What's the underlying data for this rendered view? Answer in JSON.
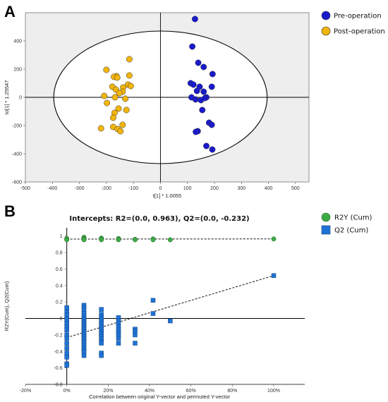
{
  "panels": {
    "a_letter": "A",
    "b_letter": "B"
  },
  "chart_data": [
    {
      "type": "scatter",
      "xlabel": "t[1] * 1.0055",
      "ylabel": "to[1] * 1.25547",
      "xlim": [
        -500,
        550
      ],
      "ylim": [
        -600,
        600
      ],
      "xticks": [
        -500,
        -400,
        -300,
        -200,
        -100,
        0,
        100,
        200,
        300,
        400,
        500
      ],
      "yticks": [
        -600,
        -400,
        -200,
        0,
        200,
        400
      ],
      "ellipse": {
        "center": [
          0,
          0
        ],
        "rx": 395,
        "ry": 470
      },
      "grid": false,
      "legend_position": "top-right",
      "series": [
        {
          "name": "Pre-operation",
          "color": "#1a1acc",
          "points": [
            [
              128,
              555
            ],
            [
              118,
              360
            ],
            [
              140,
              245
            ],
            [
              160,
              215
            ],
            [
              193,
              165
            ],
            [
              112,
              100
            ],
            [
              122,
              90
            ],
            [
              145,
              75
            ],
            [
              190,
              75
            ],
            [
              135,
              45
            ],
            [
              160,
              40
            ],
            [
              115,
              0
            ],
            [
              170,
              0
            ],
            [
              130,
              -15
            ],
            [
              150,
              -20
            ],
            [
              165,
              -5
            ],
            [
              155,
              -90
            ],
            [
              180,
              -180
            ],
            [
              190,
              -195
            ],
            [
              138,
              -240
            ],
            [
              131,
              -245
            ],
            [
              170,
              -345
            ],
            [
              192,
              -370
            ]
          ]
        },
        {
          "name": "Post-operation",
          "color": "#f2b50c",
          "points": [
            [
              -115,
              270
            ],
            [
              -200,
              195
            ],
            [
              -115,
              155
            ],
            [
              -163,
              150
            ],
            [
              -172,
              145
            ],
            [
              -160,
              140
            ],
            [
              -120,
              90
            ],
            [
              -178,
              75
            ],
            [
              -138,
              70
            ],
            [
              -110,
              80
            ],
            [
              -165,
              55
            ],
            [
              -140,
              40
            ],
            [
              -152,
              30
            ],
            [
              -208,
              10
            ],
            [
              -168,
              0
            ],
            [
              -130,
              -10
            ],
            [
              -198,
              -40
            ],
            [
              -155,
              -80
            ],
            [
              -126,
              -90
            ],
            [
              -170,
              -110
            ],
            [
              -175,
              -145
            ],
            [
              -140,
              -195
            ],
            [
              -175,
              -210
            ],
            [
              -220,
              -220
            ],
            [
              -158,
              -225
            ],
            [
              -148,
              -240
            ]
          ]
        }
      ]
    },
    {
      "type": "scatter",
      "title": "Intercepts: R2=(0.0, 0.963), Q2=(0.0, -0.232)",
      "xlabel": "Correlation between original Y-vector and permuted Y-vector",
      "ylabel": "R2Y(Cum), Q2(Cum)",
      "xlim": [
        -20,
        115
      ],
      "ylim": [
        -0.8,
        1.1
      ],
      "xticks": [
        -20,
        0,
        20,
        40,
        60,
        80,
        100
      ],
      "xtick_labels": [
        "-20%",
        "0%",
        "20%",
        "40%",
        "60%",
        "80%",
        "100%"
      ],
      "yticks": [
        -0.8,
        -0.6,
        -0.4,
        -0.2,
        0,
        0.2,
        0.4,
        0.6,
        0.8,
        1
      ],
      "ytick_labels": [
        "-0.8",
        "-0.6",
        "-0.4",
        "-0.2",
        "0",
        "0.2",
        "0.4",
        "0.6",
        "0.8",
        "1"
      ],
      "legend_position": "top-right",
      "series": [
        {
          "name": "R2Y (Cum)",
          "color": "#3dab45",
          "marker": "circle",
          "points": [
            [
              0,
              0.97
            ],
            [
              0,
              0.96
            ],
            [
              0,
              0.955
            ],
            [
              8.3,
              0.985
            ],
            [
              8.3,
              0.97
            ],
            [
              8.3,
              0.96
            ],
            [
              8.3,
              0.955
            ],
            [
              16.7,
              0.975
            ],
            [
              16.7,
              0.965
            ],
            [
              16.7,
              0.955
            ],
            [
              25,
              0.97
            ],
            [
              25,
              0.96
            ],
            [
              25,
              0.955
            ],
            [
              33,
              0.96
            ],
            [
              33,
              0.955
            ],
            [
              41.7,
              0.965
            ],
            [
              41.7,
              0.955
            ],
            [
              50,
              0.955
            ],
            [
              100,
              0.965
            ]
          ],
          "regression": [
            [
              0,
              0.963
            ],
            [
              100,
              0.965
            ]
          ]
        },
        {
          "name": "Q2 (Cum)",
          "color": "#1f72d6",
          "marker": "square",
          "points": [
            [
              0,
              0.13
            ],
            [
              0,
              0.08
            ],
            [
              0,
              0.04
            ],
            [
              0,
              0.0
            ],
            [
              0,
              -0.02
            ],
            [
              0,
              -0.06
            ],
            [
              0,
              -0.1
            ],
            [
              0,
              -0.14
            ],
            [
              0,
              -0.2
            ],
            [
              0,
              -0.24
            ],
            [
              0,
              -0.3
            ],
            [
              0,
              -0.36
            ],
            [
              0,
              -0.42
            ],
            [
              0,
              -0.47
            ],
            [
              0,
              -0.55
            ],
            [
              0,
              -0.57
            ],
            [
              8.3,
              0.16
            ],
            [
              8.3,
              0.13
            ],
            [
              8.3,
              0.1
            ],
            [
              8.3,
              0.06
            ],
            [
              8.3,
              0.03
            ],
            [
              8.3,
              0.0
            ],
            [
              8.3,
              -0.02
            ],
            [
              8.3,
              -0.04
            ],
            [
              8.3,
              -0.06
            ],
            [
              8.3,
              -0.08
            ],
            [
              8.3,
              -0.1
            ],
            [
              8.3,
              -0.12
            ],
            [
              8.3,
              -0.14
            ],
            [
              8.3,
              -0.16
            ],
            [
              8.3,
              -0.18
            ],
            [
              8.3,
              -0.2
            ],
            [
              8.3,
              -0.22
            ],
            [
              8.3,
              -0.24
            ],
            [
              8.3,
              -0.26
            ],
            [
              8.3,
              -0.28
            ],
            [
              8.3,
              -0.3
            ],
            [
              8.3,
              -0.33
            ],
            [
              8.3,
              -0.36
            ],
            [
              8.3,
              -0.38
            ],
            [
              8.3,
              -0.4
            ],
            [
              8.3,
              -0.45
            ],
            [
              16.7,
              0.11
            ],
            [
              16.7,
              0.05
            ],
            [
              16.7,
              0.02
            ],
            [
              16.7,
              -0.01
            ],
            [
              16.7,
              -0.04
            ],
            [
              16.7,
              -0.07
            ],
            [
              16.7,
              -0.1
            ],
            [
              16.7,
              -0.13
            ],
            [
              16.7,
              -0.16
            ],
            [
              16.7,
              -0.18
            ],
            [
              16.7,
              -0.2
            ],
            [
              16.7,
              -0.22
            ],
            [
              16.7,
              -0.25
            ],
            [
              16.7,
              -0.28
            ],
            [
              16.7,
              -0.3
            ],
            [
              16.7,
              -0.42
            ],
            [
              16.7,
              -0.45
            ],
            [
              25,
              0.01
            ],
            [
              25,
              -0.03
            ],
            [
              25,
              -0.06
            ],
            [
              25,
              -0.1
            ],
            [
              25,
              -0.14
            ],
            [
              25,
              -0.17
            ],
            [
              25,
              -0.2
            ],
            [
              25,
              -0.24
            ],
            [
              25,
              -0.3
            ],
            [
              33,
              -0.13
            ],
            [
              33,
              -0.15
            ],
            [
              33,
              -0.2
            ],
            [
              33,
              -0.3
            ],
            [
              41.7,
              0.22
            ],
            [
              41.7,
              0.06
            ],
            [
              50,
              -0.03
            ],
            [
              100,
              0.52
            ]
          ],
          "regression": [
            [
              0,
              -0.232
            ],
            [
              100,
              0.52
            ]
          ]
        }
      ]
    }
  ]
}
